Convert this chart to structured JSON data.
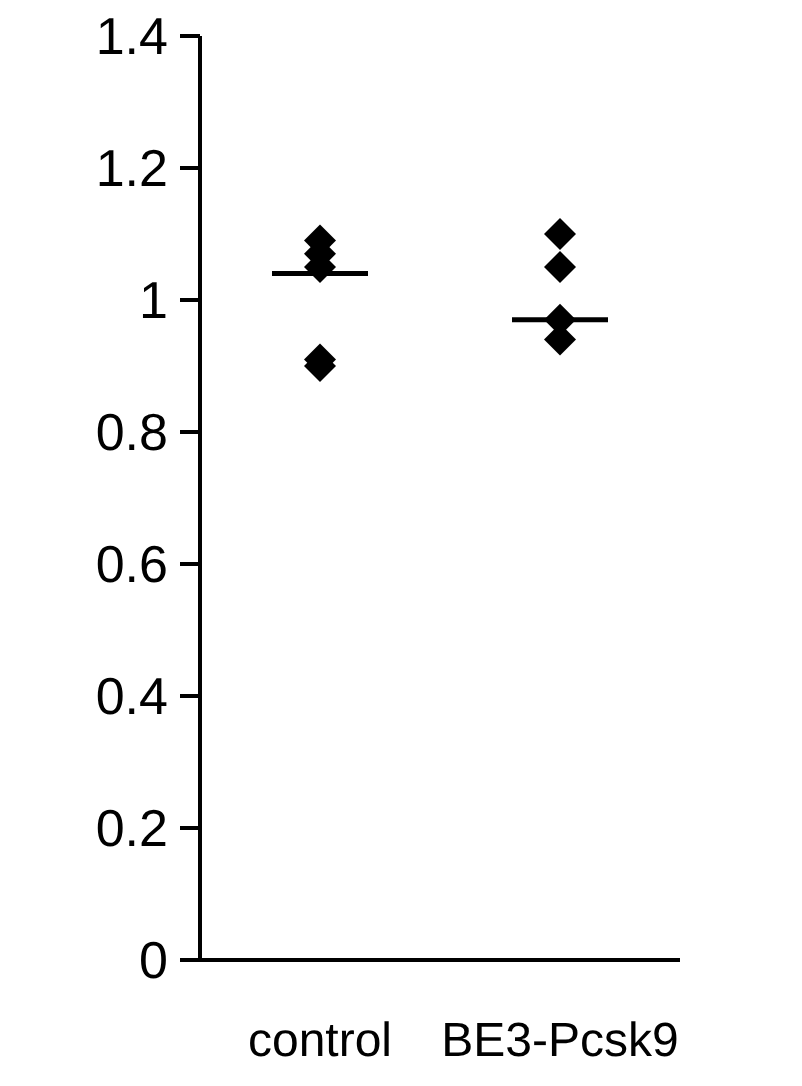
{
  "chart_data": {
    "type": "scatter",
    "categories": [
      "control",
      "BE3-Pcsk9"
    ],
    "ylim": [
      0,
      1.4
    ],
    "yticks": [
      0,
      {
        "value": 0.2,
        "label": "0.2"
      },
      {
        "value": 0.4,
        "label": "0.4"
      },
      {
        "value": 0.6,
        "label": "0.6"
      },
      {
        "value": 0.8,
        "label": "0.8"
      },
      1,
      {
        "value": 1.2,
        "label": "1.2"
      },
      {
        "value": 1.4,
        "label": "1.4"
      }
    ],
    "grid": false,
    "series": [
      {
        "type": "scatter",
        "marker": "diamond",
        "color": "#000000",
        "x": [
          "control",
          "control",
          "control",
          "control",
          "control",
          "BE3-Pcsk9",
          "BE3-Pcsk9",
          "BE3-Pcsk9",
          "BE3-Pcsk9"
        ],
        "values": [
          1.09,
          1.07,
          1.05,
          0.91,
          0.9,
          1.1,
          1.05,
          0.97,
          0.94
        ]
      },
      {
        "type": "box",
        "color": "#000000",
        "boxes": [
          {
            "low": 1.04,
            "q1": 1.04,
            "median": 1.04,
            "q3": 1.04,
            "high": 1.04
          },
          {
            "low": 0.97,
            "q1": 0.97,
            "median": 0.97,
            "q3": 0.97,
            "high": 0.97
          }
        ]
      }
    ]
  }
}
